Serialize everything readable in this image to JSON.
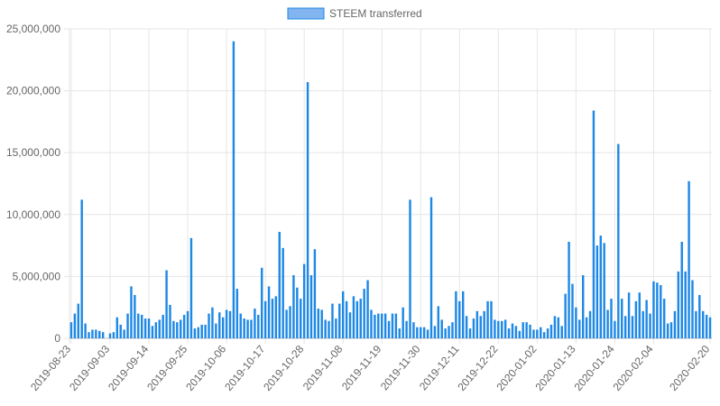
{
  "colors": {
    "bar_fill": "#1e88e5",
    "legend_fill": "#82b4f0",
    "legend_stroke": "#1e88e5",
    "grid": "#e6e6e6",
    "axis_text": "#666666"
  },
  "chart_data": {
    "type": "bar",
    "title": "",
    "xlabel": "",
    "ylabel": "",
    "legend": {
      "position": "top-center"
    },
    "grid": true,
    "ylim": [
      0,
      25000000
    ],
    "y_ticks": [
      "0",
      "5,000,000",
      "10,000,000",
      "15,000,000",
      "20,000,000",
      "25,000,000"
    ],
    "y_tick_values": [
      0,
      5000000,
      10000000,
      15000000,
      20000000,
      25000000
    ],
    "x_tick_labels": [
      "2019-08-23",
      "2019-09-03",
      "2019-09-14",
      "2019-09-25",
      "2019-10-06",
      "2019-10-17",
      "2019-10-28",
      "2019-11-08",
      "2019-11-19",
      "2019-11-30",
      "2019-12-11",
      "2019-12-22",
      "2020-01-02",
      "2020-01-13",
      "2020-01-24",
      "2020-02-04",
      "2020-02-20"
    ],
    "start_date": "2019-08-23",
    "end_date": "2020-02-20",
    "series": [
      {
        "name": "STEEM transferred",
        "values": [
          1300000,
          2000000,
          2800000,
          11200000,
          1200000,
          500000,
          700000,
          700000,
          600000,
          500000,
          0,
          400000,
          500000,
          1700000,
          1100000,
          700000,
          2000000,
          4200000,
          3500000,
          2000000,
          1900000,
          1600000,
          1600000,
          1000000,
          1300000,
          1500000,
          1900000,
          5500000,
          2700000,
          1400000,
          1300000,
          1500000,
          1900000,
          2200000,
          8100000,
          800000,
          900000,
          1100000,
          1100000,
          2000000,
          2500000,
          1200000,
          2100000,
          1700000,
          2300000,
          2200000,
          24000000,
          4000000,
          2000000,
          1600000,
          1500000,
          1500000,
          2400000,
          1900000,
          5700000,
          3000000,
          4200000,
          3200000,
          3400000,
          8600000,
          7300000,
          2300000,
          2600000,
          5100000,
          4100000,
          3200000,
          6000000,
          20700000,
          5100000,
          7200000,
          2400000,
          2300000,
          1500000,
          1400000,
          2800000,
          1600000,
          2800000,
          3800000,
          3000000,
          2100000,
          3400000,
          3000000,
          3200000,
          4000000,
          4700000,
          2300000,
          1900000,
          2000000,
          2000000,
          2000000,
          1400000,
          2000000,
          2000000,
          800000,
          2500000,
          1400000,
          11200000,
          1300000,
          900000,
          900000,
          900000,
          700000,
          11400000,
          1000000,
          2600000,
          1500000,
          800000,
          1000000,
          1300000,
          3800000,
          3000000,
          3800000,
          1800000,
          800000,
          1600000,
          2200000,
          1800000,
          2200000,
          3000000,
          3000000,
          1500000,
          1400000,
          1400000,
          1500000,
          800000,
          1200000,
          1000000,
          600000,
          1300000,
          1300000,
          1100000,
          700000,
          700000,
          900000,
          500000,
          800000,
          1100000,
          1800000,
          1700000,
          1000000,
          3600000,
          7800000,
          4400000,
          2500000,
          1500000,
          5100000,
          1700000,
          2200000,
          18400000,
          7500000,
          8300000,
          7700000,
          2300000,
          3200000,
          1400000,
          15700000,
          3200000,
          1800000,
          3700000,
          1800000,
          3000000,
          3700000,
          2200000,
          3100000,
          2000000,
          4600000,
          4500000,
          4300000,
          3200000,
          1200000,
          1300000,
          2200000,
          5400000,
          7800000,
          5400000,
          12700000,
          4700000,
          2200000,
          3500000,
          2200000,
          1900000,
          1700000
        ]
      }
    ]
  }
}
